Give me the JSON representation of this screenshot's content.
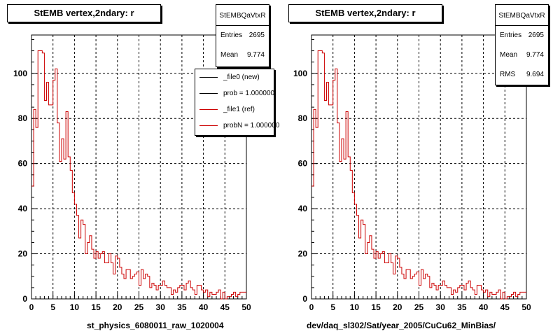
{
  "chart_data": [
    {
      "type": "bar",
      "title": "StEMB  vertex,2ndary: r",
      "xlabel": "st_physics_6080011_raw_1020004",
      "xlim": [
        0,
        50
      ],
      "ylim": [
        0,
        117
      ],
      "xticks": [
        0,
        5,
        10,
        15,
        20,
        25,
        30,
        35,
        40,
        45,
        50
      ],
      "yticks": [
        0,
        20,
        40,
        60,
        80,
        100
      ],
      "grid": true,
      "stats": {
        "name": "StEMBQaVtxR",
        "entries_label": "Entries",
        "entries": "2695",
        "mean_label": "Mean",
        "mean": "9.774"
      },
      "legend": {
        "placement": "top-right",
        "entries": [
          {
            "label": "_file0 (new)",
            "color": "#000000"
          },
          {
            "label": "prob = 1.000000",
            "color": "#000000"
          },
          {
            "label": "_file1 (ref)",
            "color": "#cc0000"
          },
          {
            "label": "probN = 1.000000",
            "color": "#cc0000"
          }
        ]
      },
      "series": [
        {
          "color": "#cc0000",
          "bin_width": 0.5,
          "x_start": 0,
          "values": [
            50,
            84,
            76,
            110,
            110,
            109,
            88,
            96,
            86,
            86,
            97,
            102,
            78,
            61,
            71,
            62,
            83,
            63,
            57,
            47,
            42,
            37,
            27,
            35,
            33,
            20,
            25,
            28,
            22,
            18,
            21,
            18,
            20,
            21,
            16,
            16,
            20,
            16,
            11,
            19,
            18,
            14,
            11,
            9,
            13,
            13,
            9,
            10,
            11,
            12,
            6,
            13,
            9,
            11,
            10,
            5,
            7,
            6,
            4,
            6,
            6,
            8,
            6,
            5,
            5,
            2,
            4,
            3,
            5,
            6,
            6,
            4,
            7,
            8,
            5,
            4,
            2,
            6,
            6,
            4,
            3,
            4,
            1,
            3,
            2,
            2,
            3,
            4,
            0,
            3,
            0,
            1,
            1,
            2,
            3,
            1,
            2,
            3,
            3,
            3
          ]
        }
      ]
    },
    {
      "type": "bar",
      "title": "StEMB  vertex,2ndary: r",
      "xlabel": "dev/daq_sl302/Sat/year_2005/CuCu62_MinBias/",
      "xlim": [
        0,
        50
      ],
      "ylim": [
        0,
        117
      ],
      "xticks": [
        0,
        5,
        10,
        15,
        20,
        25,
        30,
        35,
        40,
        45,
        50
      ],
      "yticks": [
        0,
        20,
        40,
        60,
        80,
        100
      ],
      "grid": true,
      "stats": {
        "name": "StEMBQaVtxR",
        "entries_label": "Entries",
        "entries": "2695",
        "mean_label": "Mean",
        "mean": "9.774",
        "rms_label": "RMS",
        "rms": "9.694"
      },
      "series": [
        {
          "color": "#cc0000",
          "bin_width": 0.5,
          "x_start": 0,
          "values": [
            50,
            84,
            76,
            110,
            110,
            109,
            88,
            96,
            86,
            86,
            97,
            102,
            78,
            61,
            71,
            62,
            83,
            63,
            57,
            47,
            42,
            37,
            27,
            35,
            33,
            20,
            25,
            28,
            22,
            18,
            21,
            18,
            20,
            21,
            16,
            16,
            20,
            16,
            11,
            19,
            18,
            14,
            11,
            9,
            13,
            13,
            9,
            10,
            11,
            12,
            6,
            13,
            9,
            11,
            10,
            5,
            7,
            6,
            4,
            6,
            6,
            8,
            6,
            5,
            5,
            2,
            4,
            3,
            5,
            6,
            6,
            4,
            7,
            8,
            5,
            4,
            2,
            6,
            6,
            4,
            3,
            4,
            1,
            3,
            2,
            2,
            3,
            4,
            0,
            3,
            0,
            1,
            1,
            2,
            3,
            1,
            2,
            3,
            3,
            3
          ]
        }
      ]
    }
  ]
}
